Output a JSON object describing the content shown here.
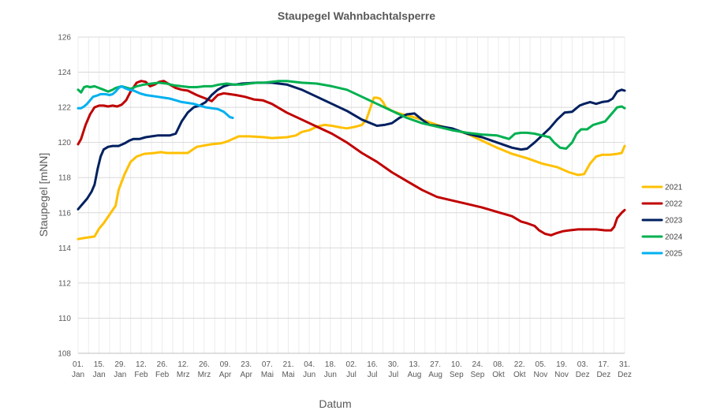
{
  "chart_data": {
    "type": "line",
    "title": "Staupegel Wahnbachtalsperre",
    "xlabel": "Datum",
    "ylabel": "Staupegel  [mNN]",
    "ylim": [
      108,
      126
    ],
    "yticks": [
      108,
      110,
      112,
      114,
      116,
      118,
      120,
      122,
      124,
      126
    ],
    "xlim": [
      1,
      365
    ],
    "x_unit": "day of year",
    "grid": "on",
    "legend_position": "right",
    "x_tick_labels": [
      {
        "day": 1,
        "top": "01.",
        "bottom": "Jan"
      },
      {
        "day": 15,
        "top": "15.",
        "bottom": "Jan"
      },
      {
        "day": 29,
        "top": "29.",
        "bottom": "Jan"
      },
      {
        "day": 43,
        "top": "12.",
        "bottom": "Feb"
      },
      {
        "day": 57,
        "top": "26.",
        "bottom": "Feb"
      },
      {
        "day": 71,
        "top": "12.",
        "bottom": "Mrz"
      },
      {
        "day": 85,
        "top": "26.",
        "bottom": "Mrz"
      },
      {
        "day": 99,
        "top": "09.",
        "bottom": "Apr"
      },
      {
        "day": 113,
        "top": "23.",
        "bottom": "Apr"
      },
      {
        "day": 127,
        "top": "07.",
        "bottom": "Mai"
      },
      {
        "day": 141,
        "top": "21.",
        "bottom": "Mai"
      },
      {
        "day": 155,
        "top": "04.",
        "bottom": "Jun"
      },
      {
        "day": 169,
        "top": "18.",
        "bottom": "Jun"
      },
      {
        "day": 183,
        "top": "02.",
        "bottom": "Jul"
      },
      {
        "day": 197,
        "top": "16.",
        "bottom": "Jul"
      },
      {
        "day": 211,
        "top": "30.",
        "bottom": "Jul"
      },
      {
        "day": 225,
        "top": "13.",
        "bottom": "Aug"
      },
      {
        "day": 239,
        "top": "27.",
        "bottom": "Aug"
      },
      {
        "day": 253,
        "top": "10.",
        "bottom": "Sep"
      },
      {
        "day": 267,
        "top": "24.",
        "bottom": "Sep"
      },
      {
        "day": 281,
        "top": "08.",
        "bottom": "Okt"
      },
      {
        "day": 295,
        "top": "22.",
        "bottom": "Okt"
      },
      {
        "day": 309,
        "top": "05.",
        "bottom": "Nov"
      },
      {
        "day": 323,
        "top": "19.",
        "bottom": "Nov"
      },
      {
        "day": 337,
        "top": "03.",
        "bottom": "Dez"
      },
      {
        "day": 351,
        "top": "17.",
        "bottom": "Dez"
      },
      {
        "day": 365,
        "top": "31.",
        "bottom": "Dez"
      }
    ],
    "series": [
      {
        "name": "2021",
        "color": "#FFC000",
        "x": [
          1,
          4,
          8,
          12,
          15,
          18,
          22,
          26,
          28,
          32,
          36,
          40,
          45,
          52,
          56,
          60,
          66,
          70,
          74,
          80,
          90,
          96,
          100,
          108,
          115,
          125,
          130,
          140,
          146,
          150,
          155,
          160,
          165,
          170,
          176,
          180,
          186,
          190,
          193,
          195,
          197,
          198,
          200,
          202,
          204,
          206,
          210,
          215,
          222,
          230,
          240,
          250,
          260,
          270,
          280,
          290,
          300,
          310,
          320,
          328,
          334,
          338,
          342,
          346,
          350,
          355,
          360,
          363,
          365
        ],
        "y": [
          114.5,
          114.55,
          114.6,
          114.65,
          115.1,
          115.4,
          115.9,
          116.4,
          117.3,
          118.2,
          118.9,
          119.2,
          119.35,
          119.4,
          119.45,
          119.4,
          119.4,
          119.4,
          119.4,
          119.75,
          119.9,
          119.95,
          120.05,
          120.35,
          120.35,
          120.3,
          120.25,
          120.3,
          120.4,
          120.6,
          120.7,
          120.9,
          121.0,
          120.95,
          120.85,
          120.8,
          120.9,
          121.0,
          121.3,
          121.8,
          122.3,
          122.55,
          122.55,
          122.5,
          122.3,
          122.0,
          121.8,
          121.65,
          121.5,
          121.3,
          121.0,
          120.75,
          120.5,
          120.1,
          119.7,
          119.35,
          119.1,
          118.8,
          118.6,
          118.3,
          118.15,
          118.2,
          118.8,
          119.2,
          119.3,
          119.3,
          119.35,
          119.4,
          119.8
        ]
      },
      {
        "name": "2022",
        "color": "#C00000",
        "x": [
          1,
          3,
          6,
          9,
          12,
          15,
          18,
          21,
          24,
          27,
          30,
          33,
          36,
          40,
          43,
          46,
          49,
          52,
          55,
          58,
          62,
          66,
          70,
          74,
          80,
          86,
          90,
          94,
          98,
          102,
          106,
          112,
          118,
          124,
          130,
          140,
          150,
          160,
          170,
          180,
          190,
          200,
          210,
          220,
          230,
          240,
          250,
          260,
          270,
          280,
          290,
          296,
          300,
          305,
          308,
          312,
          316,
          320,
          324,
          328,
          334,
          340,
          346,
          352,
          356,
          358,
          360,
          363,
          365
        ],
        "y": [
          119.9,
          120.2,
          121.0,
          121.6,
          122.0,
          122.1,
          122.1,
          122.05,
          122.1,
          122.05,
          122.15,
          122.4,
          122.9,
          123.4,
          123.5,
          123.45,
          123.2,
          123.3,
          123.45,
          123.5,
          123.3,
          123.1,
          123.0,
          122.95,
          122.7,
          122.5,
          122.35,
          122.7,
          122.8,
          122.75,
          122.7,
          122.6,
          122.45,
          122.4,
          122.2,
          121.7,
          121.3,
          120.9,
          120.5,
          120.0,
          119.4,
          118.9,
          118.3,
          117.8,
          117.3,
          116.9,
          116.7,
          116.5,
          116.3,
          116.05,
          115.8,
          115.5,
          115.4,
          115.25,
          115.0,
          114.8,
          114.72,
          114.85,
          114.95,
          115.0,
          115.05,
          115.05,
          115.05,
          115.0,
          115.0,
          115.2,
          115.7,
          116.0,
          116.15
        ]
      },
      {
        "name": "2023",
        "color": "#002060",
        "x": [
          1,
          4,
          7,
          10,
          12,
          14,
          16,
          18,
          21,
          24,
          28,
          32,
          35,
          38,
          42,
          46,
          50,
          54,
          58,
          62,
          66,
          70,
          74,
          78,
          82,
          86,
          90,
          94,
          98,
          102,
          106,
          110,
          120,
          130,
          140,
          150,
          160,
          170,
          180,
          190,
          200,
          205,
          210,
          215,
          220,
          225,
          230,
          235,
          240,
          250,
          260,
          270,
          280,
          290,
          296,
          300,
          305,
          310,
          315,
          320,
          325,
          330,
          335,
          338,
          342,
          346,
          350,
          354,
          357,
          360,
          363,
          365
        ],
        "y": [
          116.2,
          116.5,
          116.8,
          117.2,
          117.6,
          118.5,
          119.2,
          119.6,
          119.75,
          119.8,
          119.8,
          119.95,
          120.1,
          120.2,
          120.2,
          120.3,
          120.35,
          120.4,
          120.4,
          120.4,
          120.5,
          121.2,
          121.7,
          122.0,
          122.1,
          122.3,
          122.7,
          123.0,
          123.2,
          123.3,
          123.3,
          123.35,
          123.4,
          123.4,
          123.3,
          123.0,
          122.6,
          122.2,
          121.8,
          121.3,
          120.95,
          121.0,
          121.1,
          121.4,
          121.6,
          121.65,
          121.3,
          121.0,
          120.95,
          120.8,
          120.5,
          120.3,
          120.0,
          119.7,
          119.6,
          119.65,
          120.0,
          120.4,
          120.8,
          121.3,
          121.7,
          121.75,
          122.1,
          122.2,
          122.3,
          122.2,
          122.3,
          122.35,
          122.5,
          122.9,
          123.0,
          122.95
        ]
      },
      {
        "name": "2024",
        "color": "#00B050",
        "x": [
          1,
          3,
          5,
          7,
          9,
          12,
          15,
          18,
          21,
          24,
          26,
          28,
          30,
          32,
          36,
          40,
          45,
          50,
          55,
          60,
          65,
          70,
          75,
          80,
          85,
          90,
          95,
          100,
          105,
          110,
          115,
          120,
          125,
          130,
          135,
          140,
          150,
          160,
          170,
          180,
          190,
          200,
          210,
          220,
          230,
          240,
          250,
          260,
          270,
          280,
          284,
          288,
          292,
          296,
          300,
          305,
          310,
          315,
          318,
          322,
          326,
          330,
          333,
          336,
          340,
          344,
          348,
          352,
          356,
          360,
          363,
          365
        ],
        "y": [
          123.0,
          122.85,
          123.15,
          123.2,
          123.15,
          123.2,
          123.1,
          123.0,
          122.9,
          123.0,
          123.1,
          123.15,
          123.2,
          123.15,
          123.05,
          123.2,
          123.3,
          123.35,
          123.4,
          123.35,
          123.25,
          123.2,
          123.15,
          123.15,
          123.2,
          123.2,
          123.3,
          123.35,
          123.3,
          123.3,
          123.35,
          123.4,
          123.4,
          123.45,
          123.5,
          123.5,
          123.4,
          123.35,
          123.2,
          123.0,
          122.6,
          122.2,
          121.8,
          121.4,
          121.1,
          120.9,
          120.7,
          120.55,
          120.45,
          120.4,
          120.3,
          120.2,
          120.5,
          120.55,
          120.55,
          120.5,
          120.4,
          120.3,
          120.0,
          119.7,
          119.65,
          120.0,
          120.5,
          120.75,
          120.75,
          121.0,
          121.1,
          121.2,
          121.6,
          122.0,
          122.05,
          121.95
        ]
      },
      {
        "name": "2025",
        "color": "#00B0F0",
        "x": [
          1,
          3,
          5,
          7,
          9,
          11,
          13,
          16,
          19,
          22,
          24,
          26,
          28,
          30,
          32,
          35,
          38,
          42,
          46,
          50,
          54,
          58,
          62,
          66,
          70,
          74,
          78,
          82,
          86,
          90,
          94,
          98,
          100,
          102,
          104
        ],
        "y": [
          121.95,
          121.95,
          122.05,
          122.2,
          122.4,
          122.6,
          122.65,
          122.75,
          122.75,
          122.7,
          122.75,
          122.9,
          123.1,
          123.2,
          123.1,
          123.0,
          122.95,
          122.8,
          122.7,
          122.65,
          122.6,
          122.55,
          122.5,
          122.4,
          122.3,
          122.25,
          122.2,
          122.1,
          122.0,
          121.95,
          121.9,
          121.75,
          121.6,
          121.45,
          121.4
        ]
      }
    ]
  }
}
